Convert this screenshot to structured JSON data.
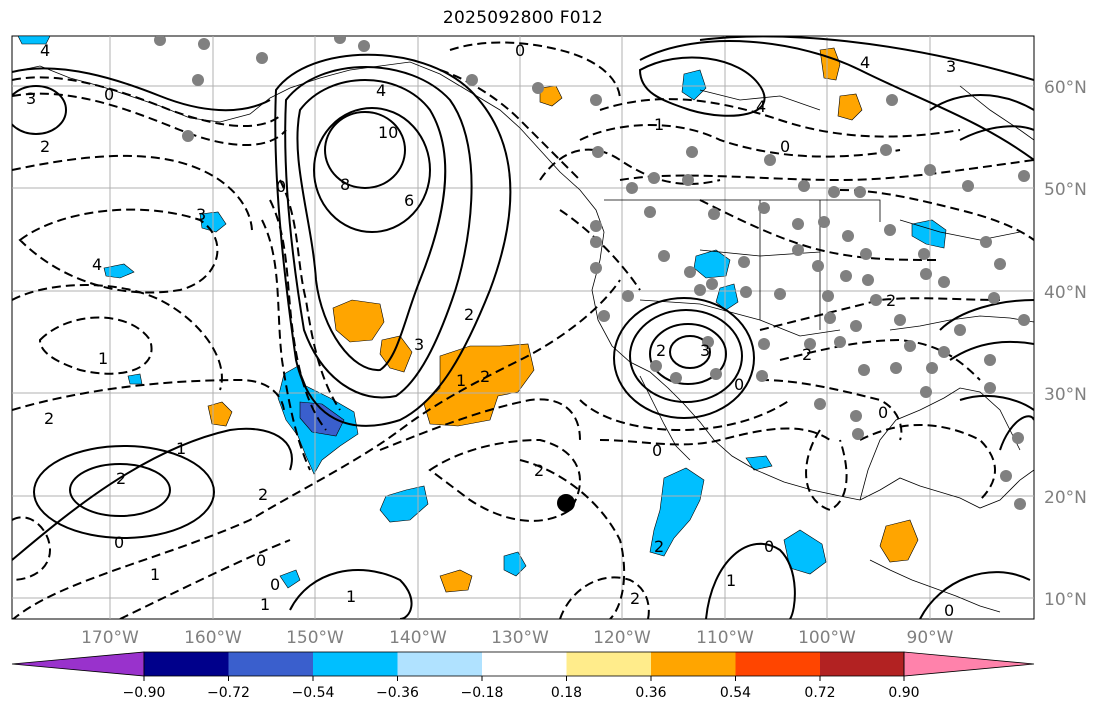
{
  "title": "2025092800 F012",
  "lon_labels": [
    "170°W",
    "160°W",
    "150°W",
    "140°W",
    "130°W",
    "120°W",
    "110°W",
    "100°W",
    "90°W"
  ],
  "lat_labels": [
    "60°N",
    "50°N",
    "40°N",
    "30°N",
    "20°N",
    "10°N"
  ],
  "colorbar": {
    "colors": [
      "#9932cc",
      "#00008b",
      "#3a5fcd",
      "#00bfff",
      "#b0e2ff",
      "#ffffff",
      "#ffec8b",
      "#ffa500",
      "#ff4500",
      "#b22222",
      "#ff82ab"
    ],
    "tick_labels": [
      "−0.90",
      "−0.72",
      "−0.54",
      "−0.36",
      "−0.18",
      "0.18",
      "0.36",
      "0.54",
      "0.72",
      "0.90"
    ]
  },
  "contour_labels": [
    "4",
    "0",
    "3",
    "2",
    "10",
    "8",
    "6",
    "4",
    "3",
    "1",
    "2",
    "4",
    "0",
    "2",
    "3",
    "2",
    "1",
    "2",
    "1",
    "3",
    "2",
    "0",
    "2",
    "0",
    "2",
    "0",
    "1",
    "0",
    "1",
    "1",
    "2",
    "0",
    "0",
    "1",
    "2",
    "0",
    "1",
    "0",
    "2",
    "3",
    "4",
    "4",
    "2",
    "0",
    "0"
  ],
  "colors": {
    "orange_fill": "#ffa500",
    "blue_fill": "#00bfff",
    "dark_blue_fill": "#3a5fcd",
    "station_marker": "#808080"
  }
}
